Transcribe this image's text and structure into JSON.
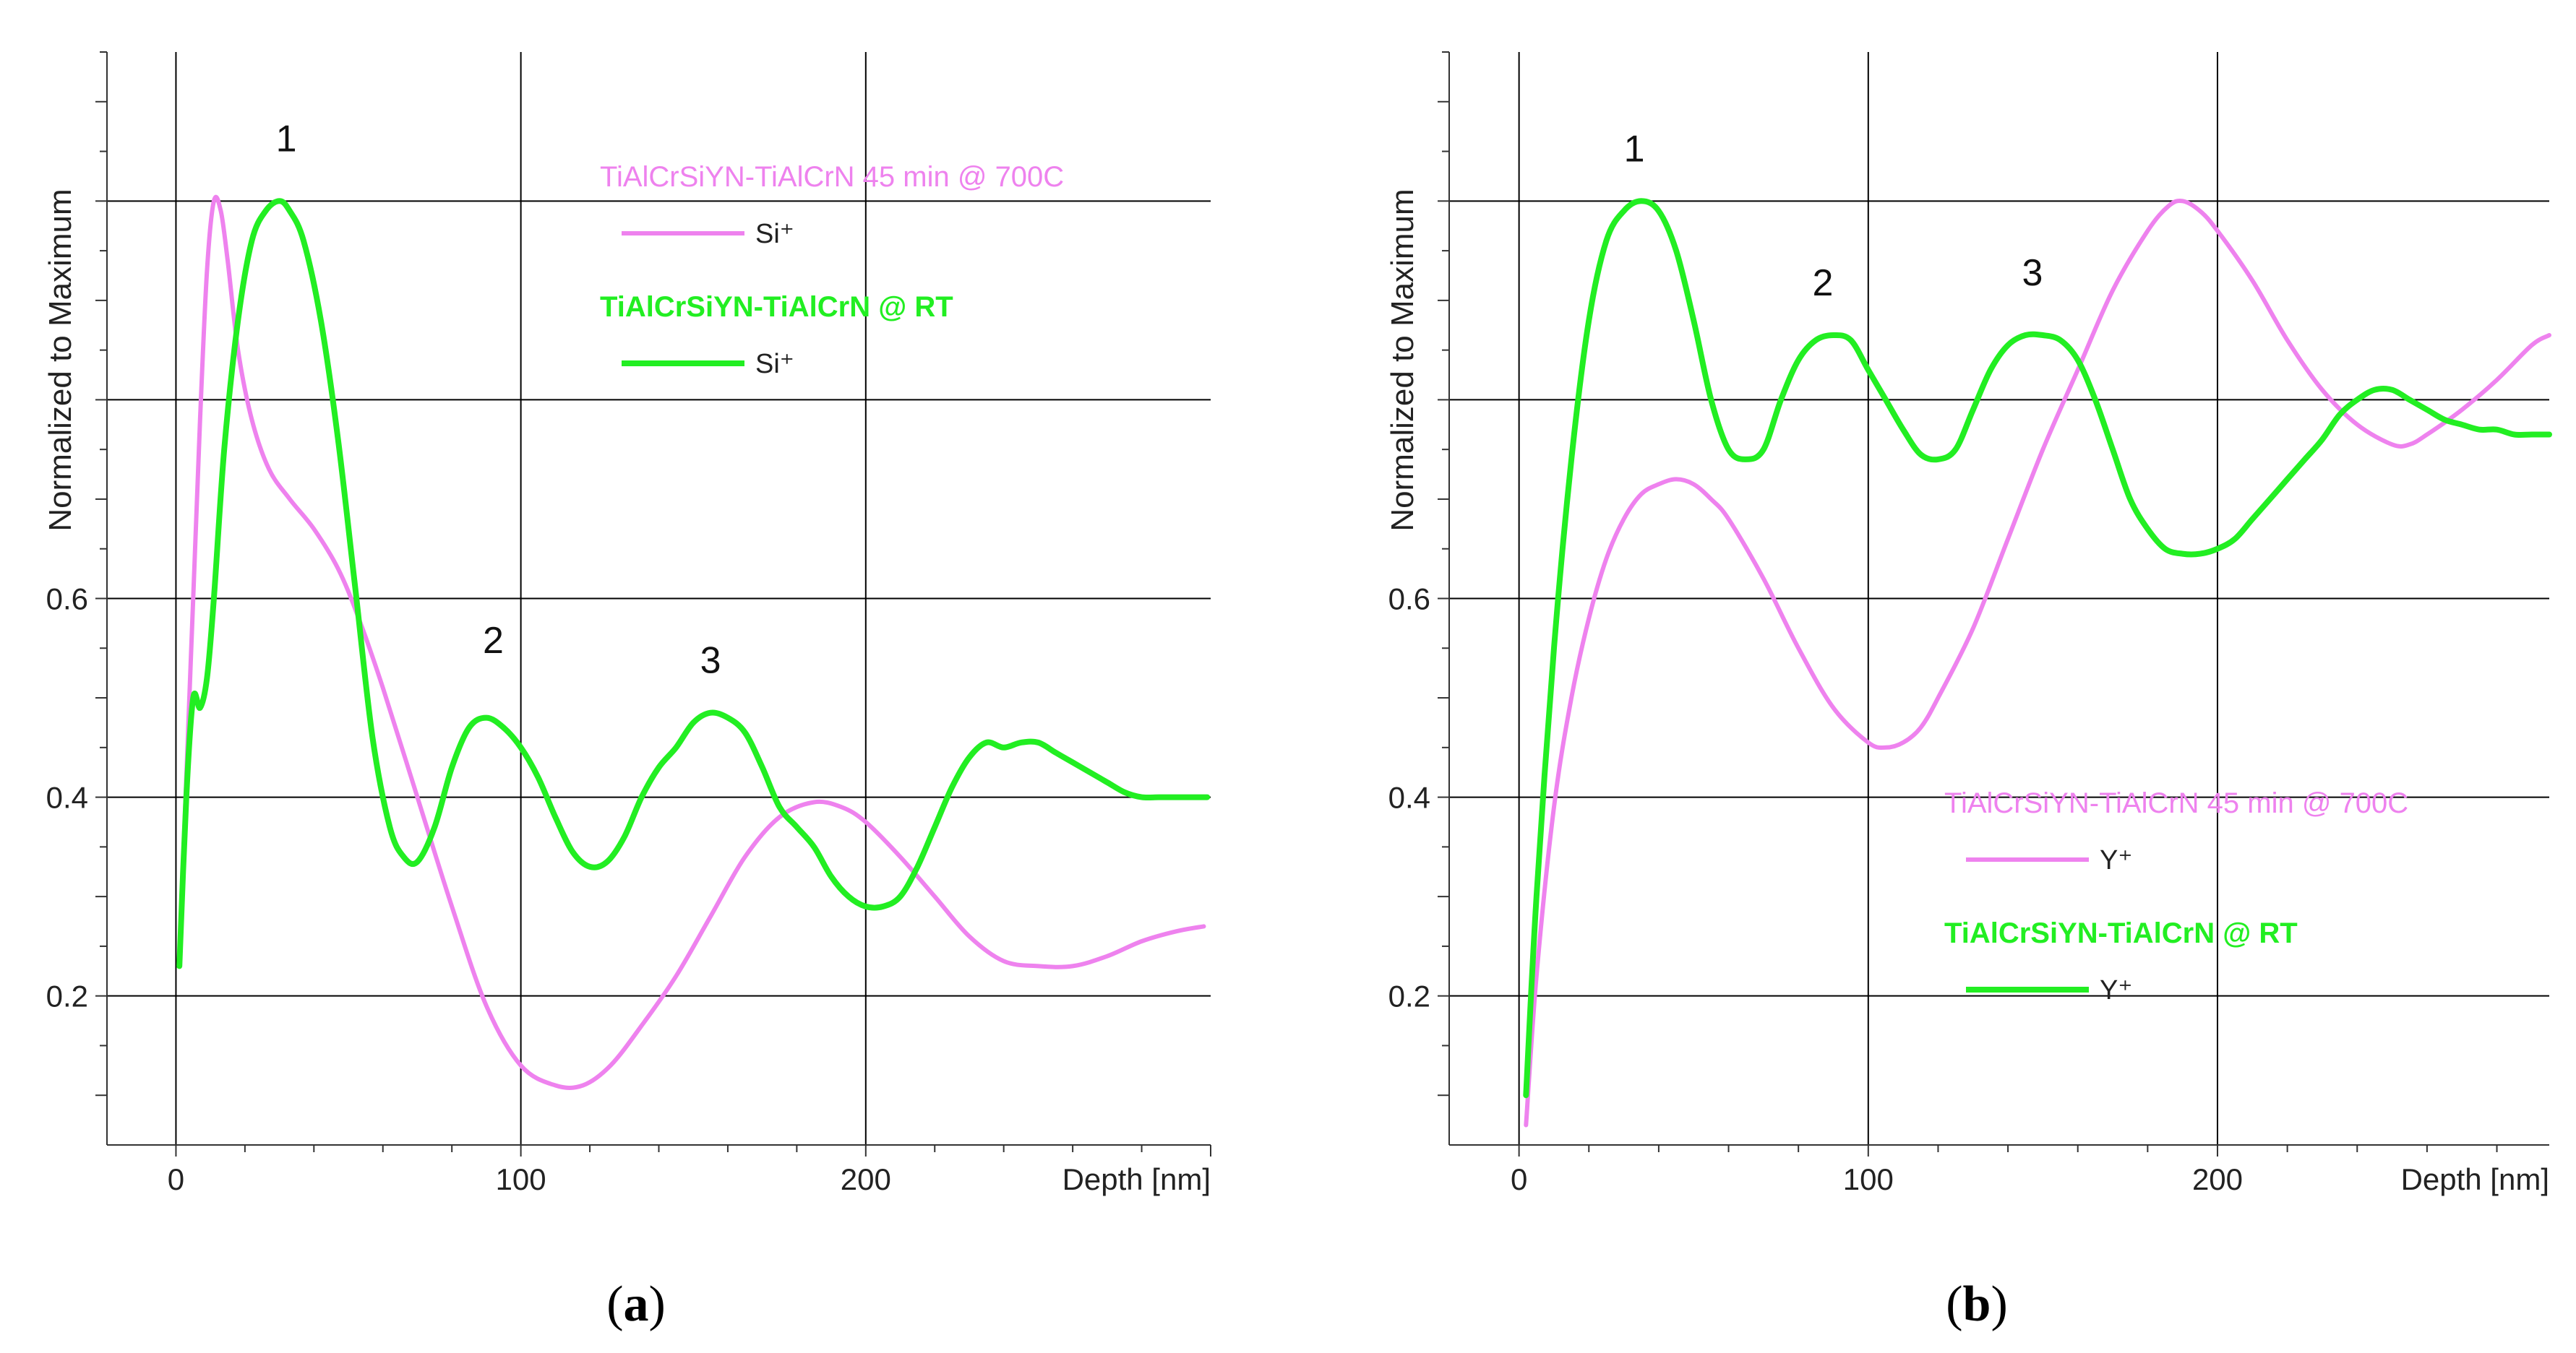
{
  "colors": {
    "annealed": "#ee82ee",
    "rt": "#22ee22",
    "grid": "#000000",
    "axis": "#333333"
  },
  "chart_data": [
    {
      "type": "line",
      "panel_label": "a",
      "ylabel": "Normalized to Maximum",
      "xlabel": "Depth [nm]",
      "xlim": [
        -20,
        300
      ],
      "ylim": [
        0.05,
        1.15
      ],
      "xticks": [
        0,
        100,
        200
      ],
      "yticks": [
        0.2,
        0.4,
        0.6
      ],
      "ygrid": [
        0.2,
        0.4,
        0.6,
        0.8,
        1.0
      ],
      "xgrid": [
        0,
        100,
        200
      ],
      "peak_labels": [
        {
          "text": "1",
          "x": 32,
          "y": 1.05
        },
        {
          "text": "2",
          "x": 92,
          "y": 0.545
        },
        {
          "text": "3",
          "x": 155,
          "y": 0.525
        }
      ],
      "legend": {
        "placement": "top-right",
        "entries": [
          {
            "name": "TiAlCrSiYN-TiAlCrN 45 min @ 700C",
            "ion": "Si⁺",
            "color": "#ee82ee"
          },
          {
            "name": "TiAlCrSiYN-TiAlCrN @ RT",
            "ion": "Si⁺",
            "color": "#22ee22"
          }
        ]
      },
      "series": [
        {
          "name": "TiAlCrSiYN-TiAlCrN 45 min @ 700C (Si⁺)",
          "color": "#ee82ee",
          "x": [
            1,
            3,
            5,
            7,
            9,
            11,
            13,
            15,
            18,
            22,
            27,
            33,
            40,
            47,
            53,
            60,
            70,
            80,
            90,
            100,
            110,
            118,
            126,
            135,
            145,
            155,
            165,
            175,
            185,
            193,
            200,
            210,
            220,
            230,
            240,
            250,
            260,
            270,
            280,
            290,
            298
          ],
          "y": [
            0.23,
            0.42,
            0.6,
            0.78,
            0.93,
            1.0,
            0.99,
            0.94,
            0.85,
            0.78,
            0.73,
            0.7,
            0.67,
            0.63,
            0.58,
            0.51,
            0.4,
            0.29,
            0.19,
            0.13,
            0.11,
            0.11,
            0.13,
            0.17,
            0.22,
            0.28,
            0.34,
            0.38,
            0.395,
            0.39,
            0.375,
            0.34,
            0.3,
            0.26,
            0.235,
            0.23,
            0.23,
            0.24,
            0.255,
            0.265,
            0.27
          ]
        },
        {
          "name": "TiAlCrSiYN-TiAlCrN @ RT (Si⁺)",
          "color": "#22ee22",
          "x": [
            1,
            3,
            5,
            7,
            9,
            11,
            14,
            18,
            22,
            26,
            30,
            33,
            37,
            42,
            47,
            52,
            57,
            62,
            66,
            70,
            75,
            80,
            85,
            90,
            95,
            100,
            105,
            110,
            115,
            120,
            125,
            130,
            135,
            140,
            145,
            150,
            155,
            160,
            165,
            170,
            175,
            180,
            185,
            190,
            195,
            200,
            205,
            210,
            215,
            220,
            225,
            230,
            235,
            240,
            245,
            250,
            255,
            260,
            265,
            270,
            275,
            280,
            285,
            290,
            295,
            299
          ],
          "y": [
            0.23,
            0.4,
            0.5,
            0.49,
            0.52,
            0.6,
            0.75,
            0.88,
            0.96,
            0.99,
            1.0,
            0.99,
            0.96,
            0.88,
            0.76,
            0.61,
            0.46,
            0.37,
            0.34,
            0.335,
            0.37,
            0.43,
            0.47,
            0.48,
            0.47,
            0.45,
            0.42,
            0.38,
            0.345,
            0.33,
            0.335,
            0.36,
            0.4,
            0.43,
            0.45,
            0.475,
            0.485,
            0.48,
            0.465,
            0.43,
            0.39,
            0.37,
            0.35,
            0.32,
            0.3,
            0.29,
            0.29,
            0.3,
            0.33,
            0.37,
            0.41,
            0.44,
            0.455,
            0.45,
            0.455,
            0.455,
            0.445,
            0.435,
            0.425,
            0.415,
            0.405,
            0.4,
            0.4,
            0.4,
            0.4,
            0.4
          ]
        }
      ]
    },
    {
      "type": "line",
      "panel_label": "b",
      "ylabel": "Normalized to Maximum",
      "xlabel": "Depth [nm]",
      "xlim": [
        -20,
        295
      ],
      "ylim": [
        0.05,
        1.15
      ],
      "xticks": [
        0,
        100,
        200
      ],
      "yticks": [
        0.2,
        0.4,
        0.6
      ],
      "ygrid": [
        0.2,
        0.4,
        0.6,
        0.8,
        1.0
      ],
      "xgrid": [
        0,
        100,
        200
      ],
      "peak_labels": [
        {
          "text": "1",
          "x": 33,
          "y": 1.04
        },
        {
          "text": "2",
          "x": 87,
          "y": 0.905
        },
        {
          "text": "3",
          "x": 147,
          "y": 0.915
        }
      ],
      "legend": {
        "placement": "bottom-right",
        "entries": [
          {
            "name": "TiAlCrSiYN-TiAlCrN 45 min @ 700C",
            "ion": "Y⁺",
            "color": "#ee82ee"
          },
          {
            "name": "TiAlCrSiYN-TiAlCrN @ RT",
            "ion": "Y⁺",
            "color": "#22ee22"
          }
        ]
      },
      "series": [
        {
          "name": "TiAlCrSiYN-TiAlCrN 45 min @ 700C (Y⁺)",
          "color": "#ee82ee",
          "x": [
            2,
            5,
            10,
            15,
            20,
            25,
            30,
            35,
            40,
            45,
            50,
            55,
            60,
            70,
            80,
            90,
            100,
            105,
            110,
            115,
            120,
            130,
            140,
            150,
            160,
            170,
            180,
            186,
            190,
            195,
            200,
            210,
            220,
            230,
            240,
            250,
            255,
            260,
            270,
            280,
            290,
            295
          ],
          "y": [
            0.07,
            0.22,
            0.39,
            0.5,
            0.58,
            0.64,
            0.68,
            0.705,
            0.715,
            0.72,
            0.715,
            0.7,
            0.68,
            0.62,
            0.55,
            0.49,
            0.455,
            0.45,
            0.455,
            0.47,
            0.5,
            0.57,
            0.66,
            0.75,
            0.83,
            0.91,
            0.97,
            0.995,
            1.0,
            0.99,
            0.97,
            0.92,
            0.86,
            0.81,
            0.775,
            0.755,
            0.755,
            0.765,
            0.79,
            0.82,
            0.855,
            0.865
          ]
        },
        {
          "name": "TiAlCrSiYN-TiAlCrN @ RT (Y⁺)",
          "color": "#22ee22",
          "x": [
            2,
            5,
            10,
            15,
            20,
            25,
            30,
            35,
            40,
            45,
            50,
            55,
            60,
            65,
            70,
            75,
            80,
            85,
            90,
            95,
            100,
            105,
            110,
            115,
            120,
            125,
            130,
            135,
            140,
            145,
            150,
            155,
            160,
            165,
            170,
            175,
            180,
            185,
            190,
            195,
            200,
            205,
            210,
            215,
            220,
            225,
            230,
            235,
            240,
            245,
            250,
            255,
            260,
            265,
            270,
            275,
            280,
            285,
            290,
            295
          ],
          "y": [
            0.1,
            0.3,
            0.55,
            0.74,
            0.88,
            0.96,
            0.99,
            1.0,
            0.99,
            0.95,
            0.88,
            0.8,
            0.75,
            0.74,
            0.75,
            0.8,
            0.84,
            0.86,
            0.865,
            0.86,
            0.83,
            0.8,
            0.77,
            0.745,
            0.74,
            0.75,
            0.79,
            0.83,
            0.855,
            0.865,
            0.865,
            0.86,
            0.84,
            0.8,
            0.75,
            0.7,
            0.67,
            0.65,
            0.645,
            0.645,
            0.65,
            0.66,
            0.68,
            0.7,
            0.72,
            0.74,
            0.76,
            0.785,
            0.8,
            0.81,
            0.81,
            0.8,
            0.79,
            0.78,
            0.775,
            0.77,
            0.77,
            0.765,
            0.765,
            0.765
          ]
        }
      ]
    }
  ]
}
